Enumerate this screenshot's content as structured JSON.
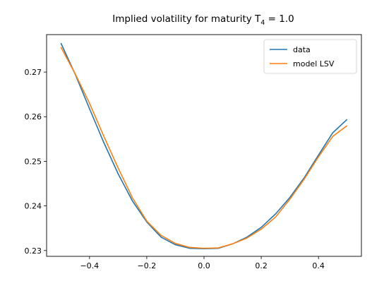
{
  "chart_data": {
    "type": "line",
    "title_prefix": "Implied volatility for maturity T",
    "title_subscript": "4",
    "title_suffix": " = 1.0",
    "xlabel": "",
    "ylabel": "",
    "xlim": [
      -0.55,
      0.55
    ],
    "ylim": [
      0.2287,
      0.2784
    ],
    "xticks": [
      -0.4,
      -0.2,
      0.0,
      0.2,
      0.4
    ],
    "xtick_labels": [
      "−0.4",
      "−0.2",
      "0.0",
      "0.2",
      "0.4"
    ],
    "yticks": [
      0.23,
      0.24,
      0.25,
      0.26,
      0.27
    ],
    "ytick_labels": [
      "0.23",
      "0.24",
      "0.25",
      "0.26",
      "0.27"
    ],
    "grid": false,
    "legend_position": "top-right",
    "series": [
      {
        "name": "data",
        "color": "#1f77b4",
        "x": [
          -0.5,
          -0.45,
          -0.4,
          -0.35,
          -0.3,
          -0.25,
          -0.2,
          -0.15,
          -0.1,
          -0.05,
          0.0,
          0.05,
          0.1,
          0.15,
          0.2,
          0.25,
          0.3,
          0.35,
          0.4,
          0.45,
          0.5
        ],
        "y": [
          0.2765,
          0.2695,
          0.2618,
          0.2542,
          0.2472,
          0.2411,
          0.2364,
          0.233,
          0.2313,
          0.2305,
          0.2304,
          0.2305,
          0.2315,
          0.233,
          0.2352,
          0.2382,
          0.2419,
          0.2463,
          0.2514,
          0.2564,
          0.2594
        ]
      },
      {
        "name": "model LSV",
        "color": "#ff7f0e",
        "x": [
          -0.5,
          -0.45,
          -0.4,
          -0.35,
          -0.3,
          -0.25,
          -0.2,
          -0.15,
          -0.1,
          -0.05,
          0.0,
          0.05,
          0.1,
          0.15,
          0.2,
          0.25,
          0.3,
          0.35,
          0.4,
          0.45,
          0.5
        ],
        "y": [
          0.2756,
          0.2696,
          0.263,
          0.2556,
          0.2485,
          0.2418,
          0.2366,
          0.2334,
          0.2316,
          0.2307,
          0.2305,
          0.2306,
          0.2315,
          0.2328,
          0.2348,
          0.2375,
          0.2415,
          0.246,
          0.251,
          0.2556,
          0.258
        ]
      }
    ]
  }
}
